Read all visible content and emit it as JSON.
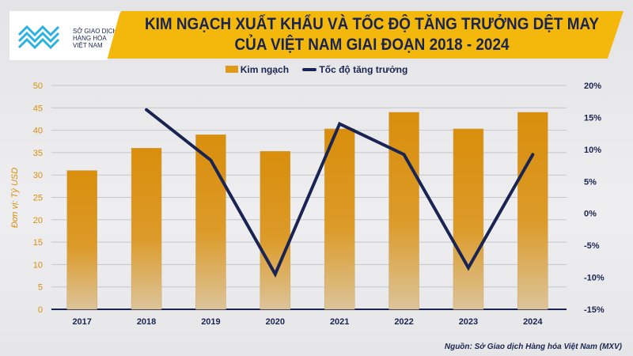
{
  "logo": {
    "lines": [
      "SỞ GIAO DỊCH",
      "HÀNG HÓA",
      "VIỆT NAM"
    ]
  },
  "title_line1": "KIM NGẠCH XUẤT KHẨU VÀ TỐC ĐỘ TĂNG TRƯỞNG DỆT MAY",
  "title_line2": "CỦA VIỆT NAM GIAI ĐOẠN 2018 - 2024",
  "source": "Nguồn: Sở Giao dịch Hàng hóa Việt Nam (MXV)",
  "chart_data": {
    "type": "bar+line",
    "categories": [
      "2017",
      "2018",
      "2019",
      "2020",
      "2021",
      "2022",
      "2023",
      "2024"
    ],
    "series": [
      {
        "name": "Kim ngạch",
        "type": "bar",
        "axis": "left",
        "values": [
          31,
          36,
          39,
          35.3,
          40.3,
          44,
          40.3,
          44
        ],
        "color": "#e09a1a"
      },
      {
        "name": "Tốc độ tăng trưởng",
        "type": "line",
        "axis": "right",
        "values": [
          null,
          16.2,
          8.3,
          -9.5,
          14,
          9.2,
          -8.5,
          9.2
        ],
        "color": "#1a2452"
      }
    ],
    "ylabel": "Đơn vị: Tỷ USD",
    "ylim": [
      0,
      50
    ],
    "yticks": [
      "0",
      "5",
      "10",
      "15",
      "20",
      "25",
      "30",
      "35",
      "40",
      "45",
      "50"
    ],
    "y2lim": [
      -15,
      20
    ],
    "y2ticks": [
      "-15%",
      "-10%",
      "-5%",
      "0%",
      "5%",
      "10%",
      "15%",
      "20%"
    ],
    "grid": true,
    "legend": "top"
  }
}
